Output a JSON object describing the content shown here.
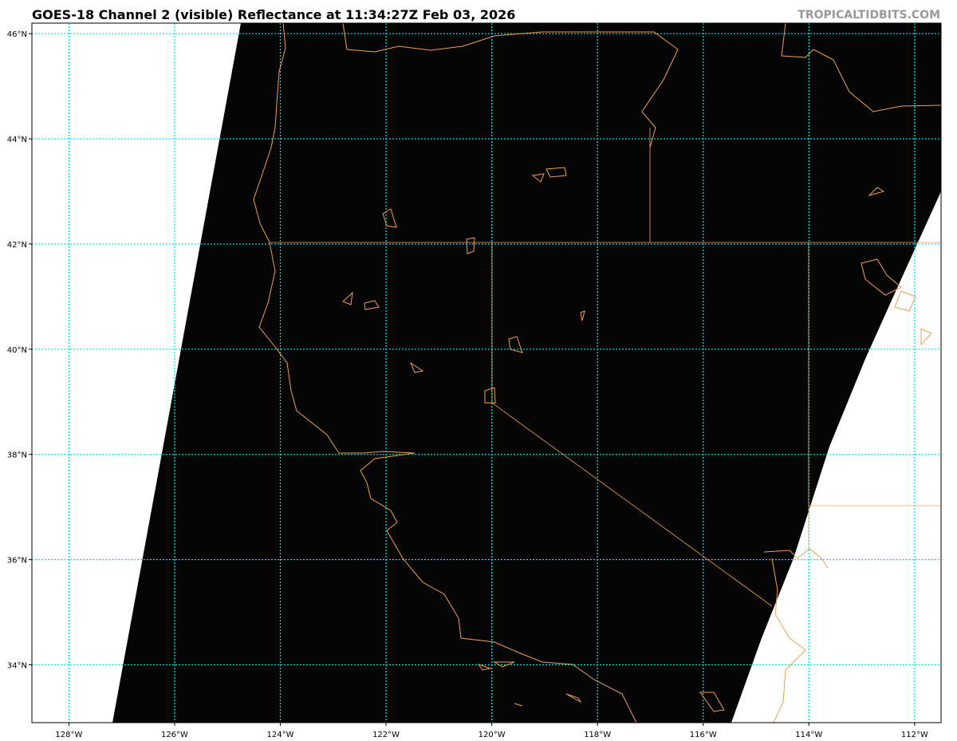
{
  "header": {
    "title": "GOES-18 Channel 2 (visible) Reflectance at 11:34:27Z Feb 03, 2026",
    "brand": "TROPICALTIDBITS.COM"
  },
  "map": {
    "satellite": "GOES-18",
    "channel": "Channel 2 (visible)",
    "product": "Reflectance",
    "valid_time": "11:34:27Z Feb 03, 2026",
    "extent": {
      "lon": [
        -128.7,
        -111.5
      ],
      "lat": [
        32.9,
        46.2
      ]
    },
    "lon_ticks": [
      -128,
      -126,
      -124,
      -122,
      -120,
      -118,
      -116,
      -114,
      -112
    ],
    "lat_ticks": [
      34,
      36,
      38,
      40,
      42,
      44,
      46
    ],
    "lon_labels": [
      "128°W",
      "126°W",
      "124°W",
      "122°W",
      "120°W",
      "118°W",
      "116°W",
      "114°W",
      "112°W"
    ],
    "lat_labels": [
      "34°N",
      "36°N",
      "38°N",
      "40°N",
      "42°N",
      "44°N",
      "46°N"
    ],
    "colors": {
      "gridlines": "#00e5ee",
      "coastlines": "#f0a050",
      "imagery": "#050505",
      "no_data": "#ffffff",
      "brand": "#999999"
    }
  }
}
